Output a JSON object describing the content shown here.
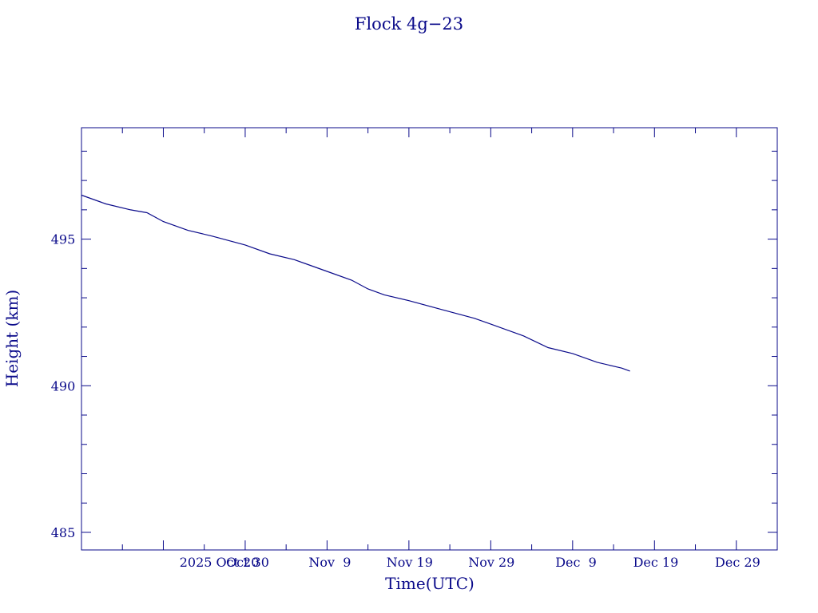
{
  "chart_data": {
    "type": "line",
    "title": "Flock 4g−23",
    "xlabel": "Time(UTC)",
    "ylabel": "Height (km)",
    "color": "#0a0a8a",
    "grid": false,
    "x_tick_labels": [
      "2025 Oct 20",
      "Oct 30",
      "Nov  9",
      "Nov 19",
      "Nov 29",
      "Dec  9",
      "Dec 19",
      "Dec 29"
    ],
    "x_tick_dates": [
      "2025-10-20",
      "2025-10-30",
      "2025-11-09",
      "2025-11-19",
      "2025-11-29",
      "2025-12-09",
      "2025-12-19",
      "2025-12-29"
    ],
    "y_tick_labels": [
      "485",
      "490",
      "495"
    ],
    "y_tick_values": [
      485,
      490,
      495
    ],
    "xlim": [
      "2025-10-10",
      "2026-01-03"
    ],
    "ylim": [
      484.4,
      498.8
    ],
    "series": [
      {
        "x": [
          "2025-10-10",
          "2025-10-13",
          "2025-10-16",
          "2025-10-18",
          "2025-10-20",
          "2025-10-23",
          "2025-10-26",
          "2025-10-30",
          "2025-11-02",
          "2025-11-05",
          "2025-11-09",
          "2025-11-12",
          "2025-11-14",
          "2025-11-16",
          "2025-11-19",
          "2025-11-23",
          "2025-11-27",
          "2025-11-29",
          "2025-12-03",
          "2025-12-06",
          "2025-12-09",
          "2025-12-12",
          "2025-12-15",
          "2025-12-16"
        ],
        "y": [
          496.5,
          496.2,
          496.0,
          495.9,
          495.6,
          495.3,
          495.1,
          494.8,
          494.5,
          494.3,
          493.9,
          493.6,
          493.3,
          493.1,
          492.9,
          492.6,
          492.3,
          492.1,
          491.7,
          491.3,
          491.1,
          490.8,
          490.6,
          490.5
        ]
      }
    ]
  }
}
